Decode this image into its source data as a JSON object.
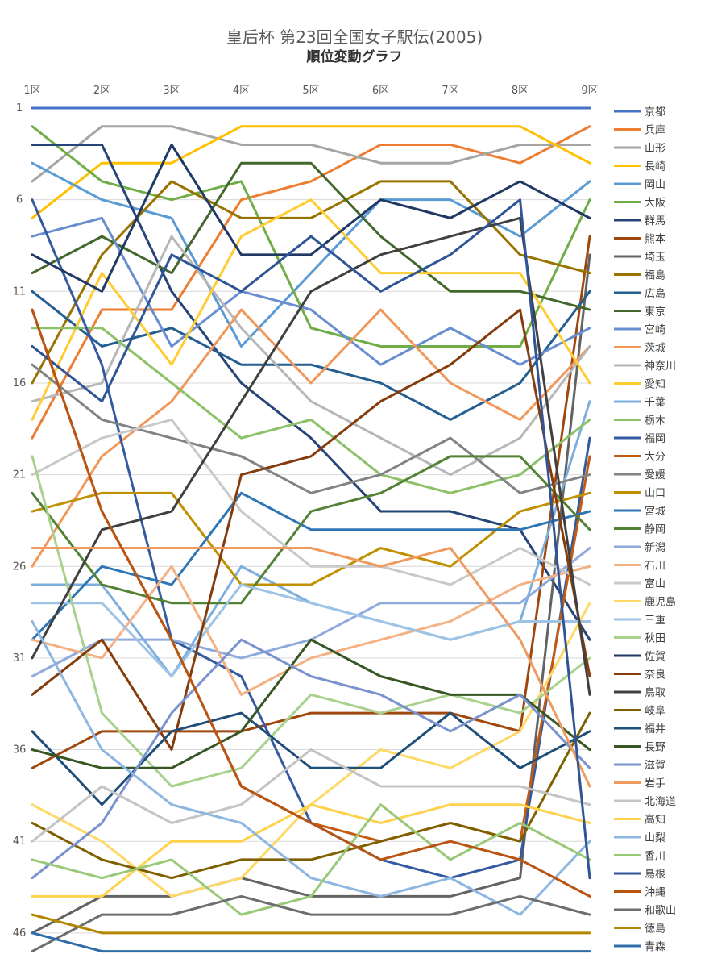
{
  "chart_data": {
    "type": "line",
    "title": "皇后杯 第23回全国女子駅伝(2005)",
    "subtitle": "順位変動グラフ",
    "x": [
      "1区",
      "2区",
      "3区",
      "4区",
      "5区",
      "6区",
      "7区",
      "8区",
      "9区"
    ],
    "ylim": [
      1,
      47
    ],
    "y_inverted": true,
    "y_ticks": [
      "1",
      "6",
      "11",
      "16",
      "21",
      "26",
      "31",
      "36",
      "41",
      "46"
    ],
    "legend_position": "right",
    "grid": true,
    "series": [
      {
        "name": "京都",
        "color": "#4472C4",
        "values": [
          1,
          1,
          1,
          1,
          1,
          1,
          1,
          1,
          1
        ]
      },
      {
        "name": "兵庫",
        "color": "#ED7D31",
        "values": [
          19,
          12,
          12,
          6,
          5,
          3,
          3,
          4,
          2
        ]
      },
      {
        "name": "山形",
        "color": "#A5A5A5",
        "values": [
          5,
          2,
          2,
          3,
          3,
          4,
          4,
          3,
          3
        ]
      },
      {
        "name": "長崎",
        "color": "#FFC000",
        "values": [
          7,
          4,
          4,
          2,
          2,
          2,
          2,
          2,
          4
        ]
      },
      {
        "name": "岡山",
        "color": "#5B9BD5",
        "values": [
          4,
          6,
          7,
          14,
          10,
          6,
          6,
          8,
          5
        ]
      },
      {
        "name": "大阪",
        "color": "#70AD47",
        "values": [
          2,
          5,
          6,
          5,
          13,
          14,
          14,
          14,
          6
        ]
      },
      {
        "name": "群馬",
        "color": "#264478",
        "values": [
          3,
          3,
          11,
          16,
          19,
          23,
          23,
          24,
          30
        ]
      },
      {
        "name": "熊本",
        "color": "#9E480E",
        "values": [
          37,
          35,
          35,
          35,
          34,
          34,
          34,
          35,
          8
        ]
      },
      {
        "name": "埼玉",
        "color": "#636363",
        "values": [
          46,
          44,
          44,
          43,
          44,
          44,
          44,
          43,
          9
        ]
      },
      {
        "name": "福島",
        "color": "#997300",
        "values": [
          16,
          9,
          5,
          7,
          7,
          5,
          5,
          9,
          10
        ]
      },
      {
        "name": "広島",
        "color": "#255E91",
        "values": [
          11,
          14,
          13,
          15,
          15,
          16,
          18,
          16,
          11
        ]
      },
      {
        "name": "東京",
        "color": "#43682B",
        "values": [
          10,
          8,
          10,
          4,
          4,
          8,
          11,
          11,
          12
        ]
      },
      {
        "name": "宮崎",
        "color": "#698ED0",
        "values": [
          8,
          7,
          14,
          11,
          12,
          15,
          13,
          15,
          13
        ]
      },
      {
        "name": "茨城",
        "color": "#F1975A",
        "values": [
          26,
          20,
          17,
          12,
          16,
          12,
          16,
          18,
          14
        ]
      },
      {
        "name": "神奈川",
        "color": "#B7B7B7",
        "values": [
          17,
          16,
          8,
          13,
          17,
          19,
          21,
          19,
          14
        ]
      },
      {
        "name": "愛知",
        "color": "#FFCD33",
        "values": [
          18,
          10,
          15,
          8,
          6,
          10,
          10,
          10,
          16
        ]
      },
      {
        "name": "千葉",
        "color": "#7CAFDD",
        "values": [
          27,
          27,
          32,
          26,
          28,
          29,
          30,
          29,
          17
        ]
      },
      {
        "name": "栃木",
        "color": "#8CC168",
        "values": [
          13,
          13,
          16,
          19,
          18,
          21,
          22,
          21,
          18
        ]
      },
      {
        "name": "福岡",
        "color": "#335AA1",
        "values": [
          6,
          15,
          30,
          32,
          40,
          42,
          43,
          42,
          19
        ]
      },
      {
        "name": "大分",
        "color": "#C55A11",
        "values": [
          12,
          23,
          30,
          38,
          40,
          41,
          40,
          41,
          20
        ]
      },
      {
        "name": "愛媛",
        "color": "#838383",
        "values": [
          15,
          18,
          19,
          20,
          22,
          21,
          19,
          22,
          21
        ]
      },
      {
        "name": "山口",
        "color": "#BF9000",
        "values": [
          23,
          22,
          22,
          27,
          27,
          25,
          26,
          23,
          22
        ]
      },
      {
        "name": "宮城",
        "color": "#2E75B6",
        "values": [
          30,
          26,
          27,
          22,
          24,
          24,
          24,
          24,
          23
        ]
      },
      {
        "name": "静岡",
        "color": "#548235",
        "values": [
          22,
          27,
          28,
          28,
          23,
          22,
          20,
          20,
          24
        ]
      },
      {
        "name": "新潟",
        "color": "#8FAADC",
        "values": [
          32,
          30,
          30,
          31,
          30,
          28,
          28,
          28,
          25
        ]
      },
      {
        "name": "石川",
        "color": "#F4B183",
        "values": [
          30,
          31,
          26,
          33,
          31,
          30,
          29,
          27,
          26
        ]
      },
      {
        "name": "富山",
        "color": "#C9C9C9",
        "values": [
          21,
          19,
          18,
          23,
          26,
          26,
          27,
          25,
          27
        ]
      },
      {
        "name": "鹿児島",
        "color": "#FFD966",
        "values": [
          39,
          41,
          44,
          43,
          39,
          36,
          37,
          35,
          28
        ]
      },
      {
        "name": "三重",
        "color": "#9DC3E6",
        "values": [
          28,
          28,
          32,
          27,
          28,
          29,
          30,
          29,
          29
        ]
      },
      {
        "name": "秋田",
        "color": "#A9D18E",
        "values": [
          20,
          34,
          38,
          37,
          33,
          34,
          33,
          34,
          31
        ]
      },
      {
        "name": "佐賀",
        "color": "#1F3864",
        "values": [
          9,
          11,
          3,
          9,
          9,
          6,
          7,
          5,
          7
        ]
      },
      {
        "name": "奈良",
        "color": "#843C0C",
        "values": [
          33,
          30,
          36,
          21,
          20,
          17,
          15,
          12,
          32
        ]
      },
      {
        "name": "鳥取",
        "color": "#404040",
        "values": [
          31,
          24,
          23,
          17,
          11,
          9,
          8,
          7,
          33
        ]
      },
      {
        "name": "岐阜",
        "color": "#7F6000",
        "values": [
          40,
          42,
          43,
          42,
          42,
          41,
          40,
          41,
          34
        ]
      },
      {
        "name": "福井",
        "color": "#1F4E79",
        "values": [
          35,
          39,
          35,
          34,
          37,
          37,
          34,
          37,
          35
        ]
      },
      {
        "name": "長野",
        "color": "#375623",
        "values": [
          36,
          37,
          37,
          35,
          30,
          32,
          33,
          33,
          36
        ]
      },
      {
        "name": "滋賀",
        "color": "#7A93CF",
        "values": [
          43,
          40,
          34,
          30,
          32,
          33,
          35,
          33,
          37
        ]
      },
      {
        "name": "岩手",
        "color": "#EF9A5E",
        "values": [
          25,
          25,
          25,
          25,
          25,
          26,
          25,
          30,
          38
        ]
      },
      {
        "name": "北海道",
        "color": "#C4C4C4",
        "values": [
          41,
          38,
          40,
          39,
          36,
          38,
          38,
          38,
          39
        ]
      },
      {
        "name": "高知",
        "color": "#FFD24D",
        "values": [
          44,
          44,
          41,
          41,
          39,
          40,
          39,
          39,
          40
        ]
      },
      {
        "name": "山梨",
        "color": "#8DB6E0",
        "values": [
          29,
          36,
          39,
          40,
          43,
          44,
          43,
          45,
          41
        ]
      },
      {
        "name": "香川",
        "color": "#98C977",
        "values": [
          42,
          43,
          42,
          45,
          44,
          39,
          42,
          40,
          42
        ]
      },
      {
        "name": "島根",
        "color": "#2F5597",
        "values": [
          14,
          17,
          9,
          11,
          8,
          11,
          9,
          6,
          43
        ]
      },
      {
        "name": "沖縄",
        "color": "#B85514",
        "values": [
          12,
          23,
          30,
          38,
          40,
          42,
          41,
          42,
          44
        ]
      },
      {
        "name": "和歌山",
        "color": "#6E6E6E",
        "values": [
          47,
          45,
          45,
          44,
          45,
          45,
          45,
          44,
          45
        ]
      },
      {
        "name": "徳島",
        "color": "#B38600",
        "values": [
          45,
          46,
          46,
          46,
          46,
          46,
          46,
          46,
          46
        ]
      },
      {
        "name": "青森",
        "color": "#2E6DA8",
        "values": [
          46,
          47,
          47,
          47,
          47,
          47,
          47,
          47,
          47
        ]
      }
    ]
  }
}
